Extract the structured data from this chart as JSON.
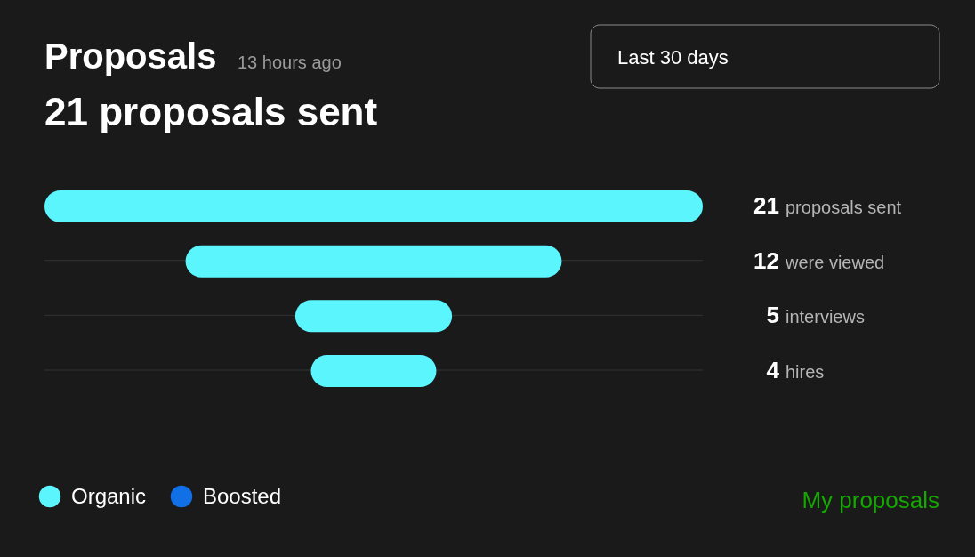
{
  "chart_data": {
    "type": "other",
    "title": "Proposals",
    "subtitle": "21 proposals sent",
    "categories": [
      "proposals sent",
      "were viewed",
      "interviews",
      "hires"
    ],
    "series": [
      {
        "name": "Organic",
        "color": "#5bf6fd",
        "values": [
          21,
          12,
          5,
          4
        ]
      },
      {
        "name": "Boosted",
        "color": "#1170e6",
        "values": [
          null,
          null,
          null,
          null
        ]
      }
    ],
    "data_labels": true,
    "legend": "bottom left",
    "annotations": [
      "13 hours ago",
      "Last 30 days",
      "My proposals"
    ]
  }
}
